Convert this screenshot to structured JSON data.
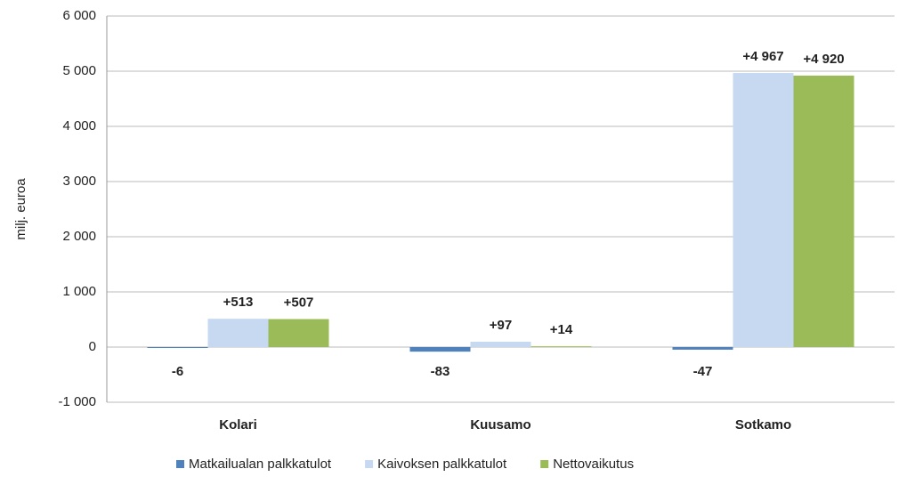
{
  "chart_data": {
    "type": "bar",
    "y_label": "milj. euroa",
    "categories": [
      "Kolari",
      "Kuusamo",
      "Sotkamo"
    ],
    "series": [
      {
        "name": "Matkailualan palkkatulot",
        "color": "#4f81bd",
        "values": [
          -6,
          -83,
          -47
        ],
        "value_labels": [
          "-6",
          "-83",
          "-47"
        ]
      },
      {
        "name": "Kaivoksen palkkatulot",
        "color": "#c6d9f1",
        "values": [
          513,
          97,
          4967
        ],
        "value_labels": [
          "+513",
          "+97",
          "+4 967"
        ]
      },
      {
        "name": "Nettovaikutus",
        "color": "#9bbb59",
        "values": [
          507,
          14,
          4920
        ],
        "value_labels": [
          "+507",
          "+14",
          "+4 920"
        ]
      }
    ],
    "ylim": [
      -1000,
      6000
    ],
    "yticks": [
      {
        "value": -1000,
        "label": "-1 000"
      },
      0,
      {
        "value": 1000,
        "label": "1 000"
      },
      {
        "value": 2000,
        "label": "2 000"
      },
      {
        "value": 3000,
        "label": "3 000"
      },
      {
        "value": 4000,
        "label": "4 000"
      },
      {
        "value": 5000,
        "label": "5 000"
      },
      {
        "value": 6000,
        "label": "6 000"
      }
    ],
    "grid": true,
    "legend": "bottom"
  }
}
